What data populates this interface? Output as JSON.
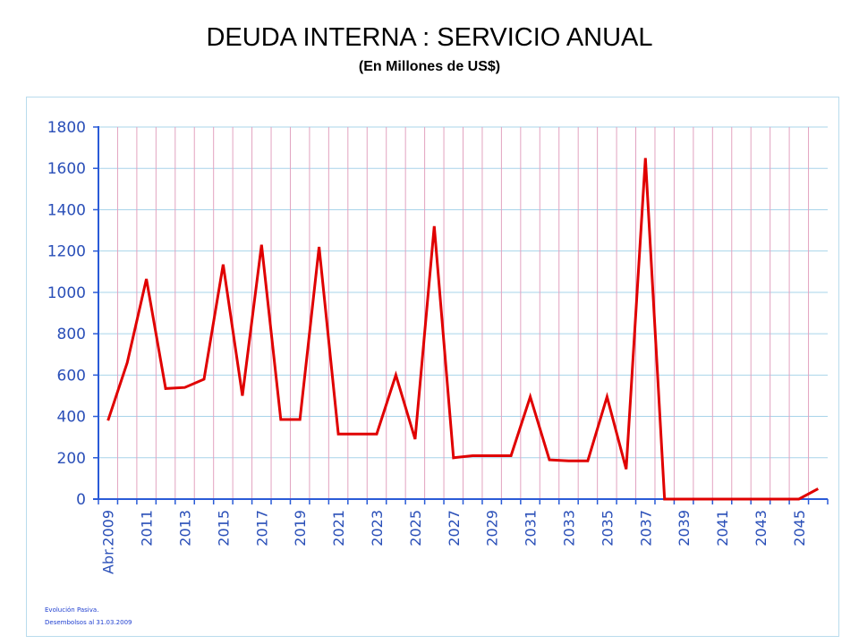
{
  "title": "DEUDA INTERNA : SERVICIO ANUAL",
  "subtitle": "(En Millones de US$)",
  "footer": {
    "line1": "Evolución Pasiva.",
    "line2": "Desembolsos al 31.03.2009"
  },
  "colors": {
    "line": "#e00000",
    "axis": "#2a5bd7",
    "tick_label": "#2a4fb8",
    "hgrid": "#a9d4ea",
    "vgrid": "#e2a3c0"
  },
  "chart_data": {
    "type": "line",
    "title": "DEUDA INTERNA : SERVICIO ANUAL",
    "subtitle": "(En Millones de US$)",
    "xlabel": "",
    "ylabel": "",
    "ylim": [
      0,
      1800
    ],
    "yticks": [
      0,
      200,
      400,
      600,
      800,
      1000,
      1200,
      1400,
      1600,
      1800
    ],
    "grid": true,
    "legend": "none",
    "categories": [
      "Abr.2009",
      "2010",
      "2011",
      "2012",
      "2013",
      "2014",
      "2015",
      "2016",
      "2017",
      "2018",
      "2019",
      "2020",
      "2021",
      "2022",
      "2023",
      "2024",
      "2025",
      "2026",
      "2027",
      "2028",
      "2029",
      "2030",
      "2031",
      "2032",
      "2033",
      "2034",
      "2035",
      "2036",
      "2037",
      "2038",
      "2039",
      "2040",
      "2041",
      "2042",
      "2043",
      "2044",
      "2045",
      "2046"
    ],
    "x_tick_labels": [
      "Abr.2009",
      "",
      "2011",
      "",
      "2013",
      "",
      "2015",
      "",
      "2017",
      "",
      "2019",
      "",
      "2021",
      "",
      "2023",
      "",
      "2025",
      "",
      "2027",
      "",
      "2029",
      "",
      "2031",
      "",
      "2033",
      "",
      "2035",
      "",
      "2037",
      "",
      "2039",
      "",
      "2041",
      "",
      "2043",
      "",
      "2045",
      ""
    ],
    "values": [
      380,
      660,
      1065,
      535,
      540,
      580,
      1135,
      500,
      1230,
      385,
      385,
      1220,
      315,
      315,
      315,
      600,
      290,
      1320,
      200,
      210,
      210,
      210,
      495,
      190,
      185,
      185,
      495,
      145,
      1650,
      0,
      0,
      0,
      0,
      0,
      0,
      0,
      0,
      50
    ]
  }
}
